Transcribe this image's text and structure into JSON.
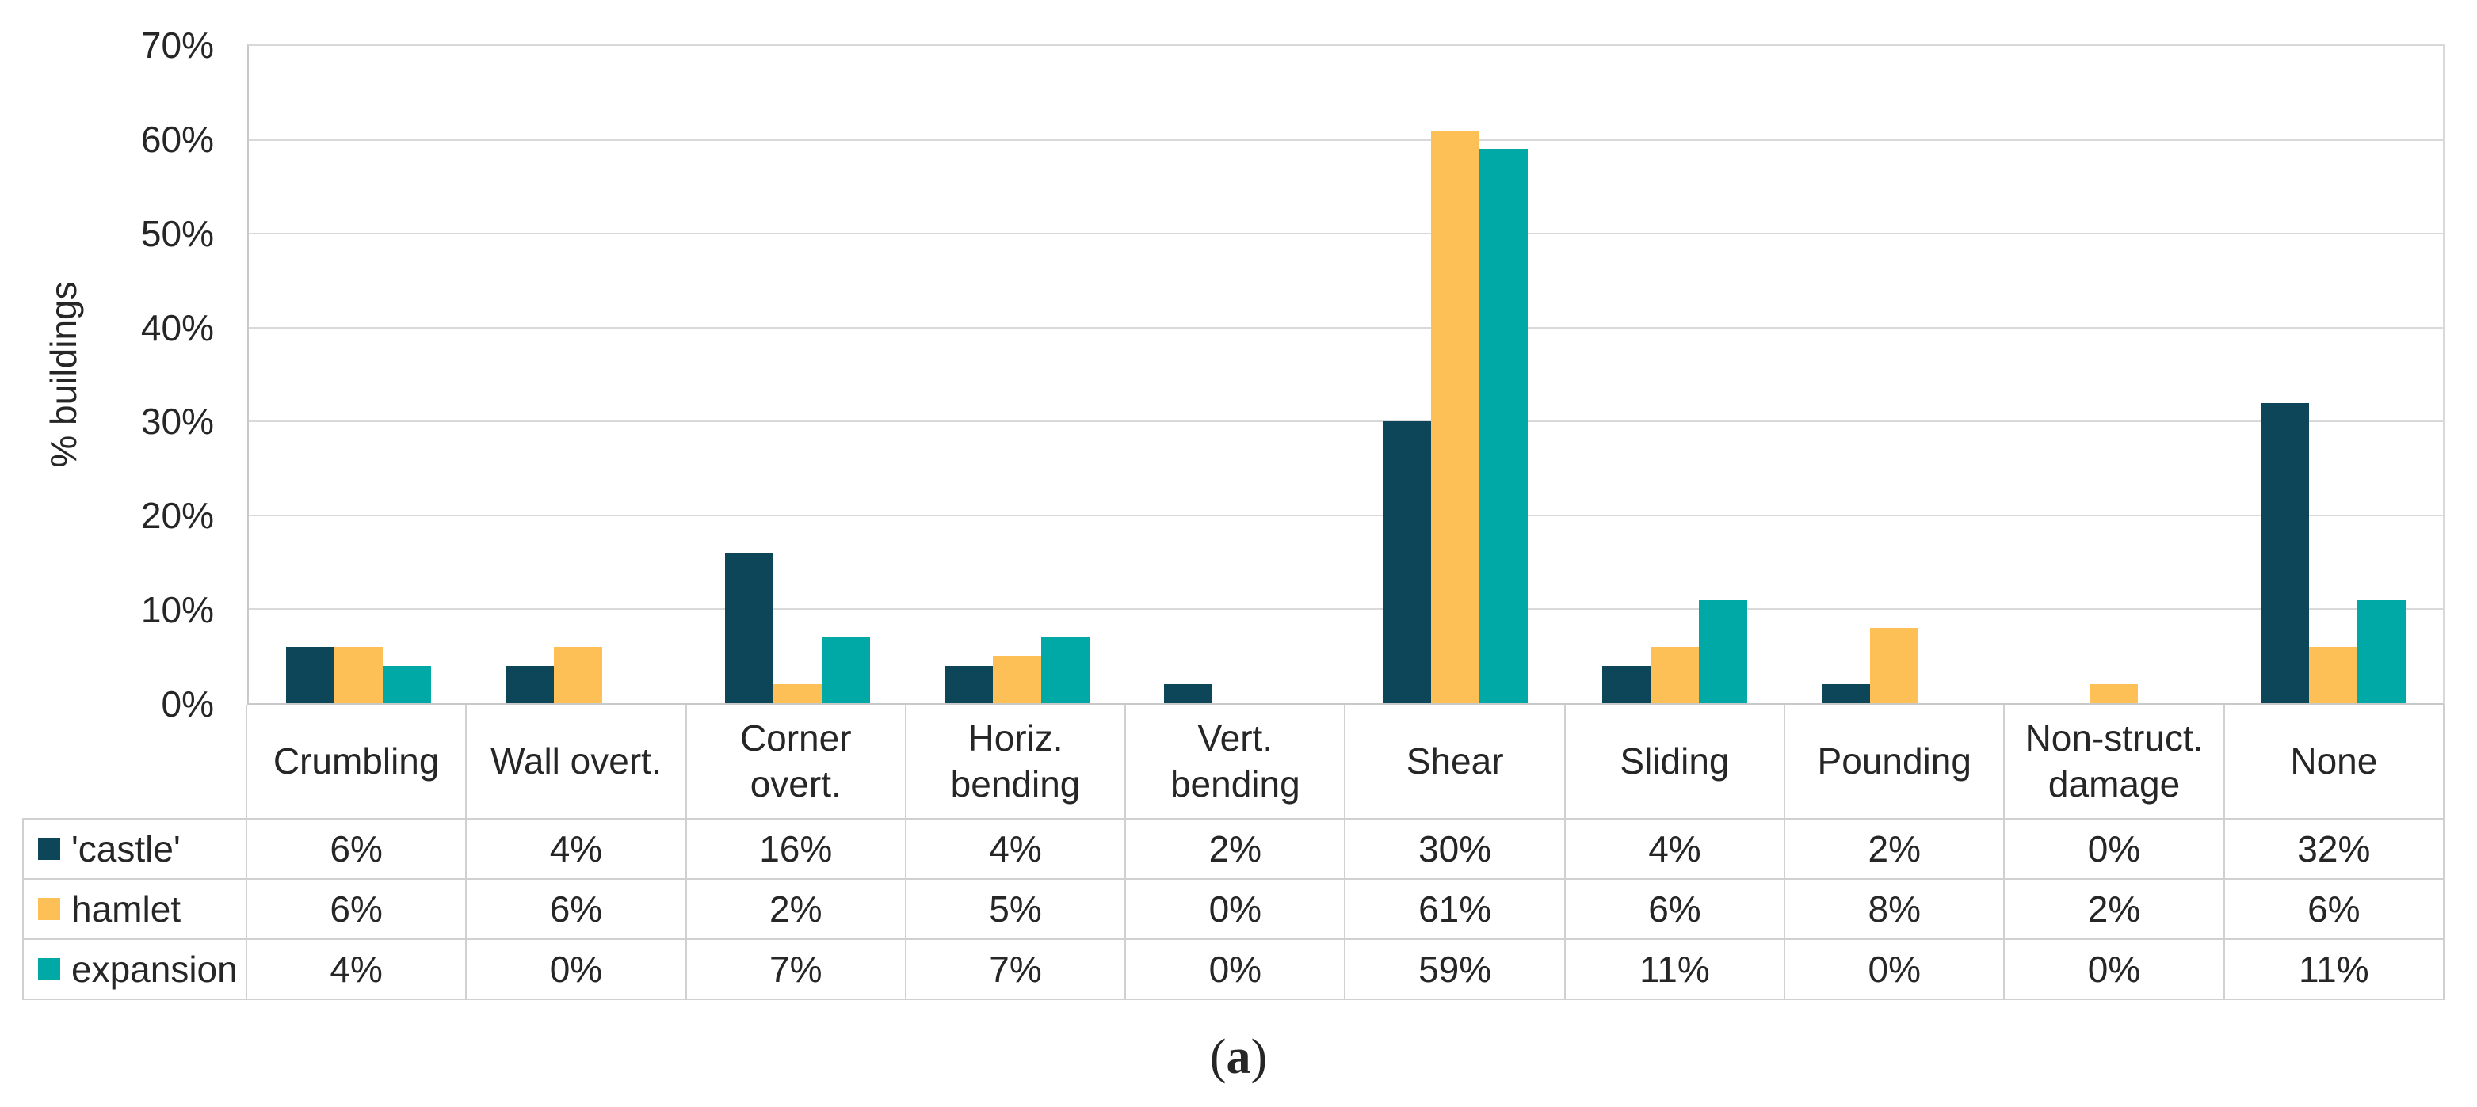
{
  "chart_data": {
    "type": "bar",
    "title": "",
    "ylabel": "% buildings",
    "ylim": [
      0,
      70
    ],
    "ytick_step": 10,
    "yticks": [
      "70%",
      "60%",
      "50%",
      "40%",
      "30%",
      "20%",
      "10%",
      "0%"
    ],
    "grid": true,
    "legend_position": "table-left-column",
    "value_suffix": "%",
    "categories": [
      "Crumbling",
      "Wall overt.",
      "Corner\novert.",
      "Horiz.\nbending",
      "Vert.\nbending",
      "Shear",
      "Sliding",
      "Pounding",
      "Non-struct.\ndamage",
      "None"
    ],
    "series": [
      {
        "name": "'castle'",
        "color": "#0d4559",
        "values": [
          6,
          4,
          16,
          4,
          2,
          30,
          4,
          2,
          0,
          32
        ]
      },
      {
        "name": "hamlet",
        "color": "#fdc056",
        "values": [
          6,
          6,
          2,
          5,
          0,
          61,
          6,
          8,
          2,
          6
        ]
      },
      {
        "name": "expansion",
        "color": "#00a9a6",
        "values": [
          4,
          0,
          7,
          7,
          0,
          59,
          11,
          0,
          0,
          11
        ]
      }
    ]
  },
  "caption": {
    "prefix": "(",
    "letter": "a",
    "suffix": ")"
  }
}
